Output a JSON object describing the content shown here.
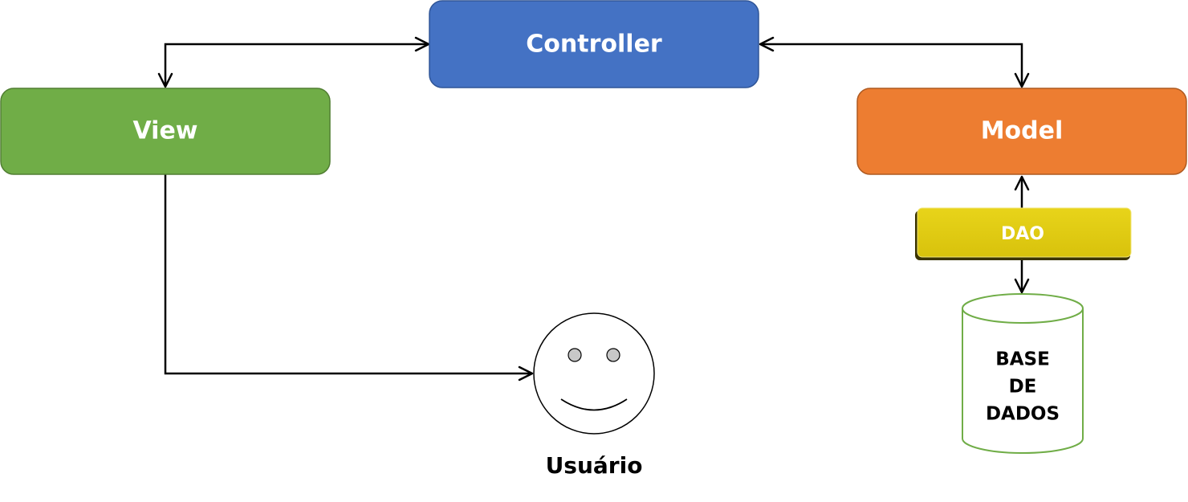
{
  "nodes": {
    "controller": {
      "label": "Controller",
      "color": "#4472C4",
      "border": "#2F5597"
    },
    "view": {
      "label": "View",
      "color": "#70AD47",
      "border": "#507E32"
    },
    "model": {
      "label": "Model",
      "color": "#ED7D31",
      "border": "#AE5A21"
    },
    "dao": {
      "label": "DAO",
      "color": "#DCC80F",
      "shadow": "#3A3300"
    },
    "database": {
      "lines": [
        "BASE",
        "DE",
        "DADOS"
      ],
      "border": "#70AD47"
    },
    "user": {
      "label": "Usuário",
      "icon": "smiley-face-icon"
    }
  },
  "edges": [
    {
      "from": "controller",
      "to": "view",
      "bidirectional": true
    },
    {
      "from": "controller",
      "to": "model",
      "bidirectional": true
    },
    {
      "from": "view",
      "to": "user",
      "bidirectional": false
    },
    {
      "from": "model",
      "to": "dao",
      "bidirectional": true
    },
    {
      "from": "dao",
      "to": "database",
      "bidirectional": true
    }
  ]
}
